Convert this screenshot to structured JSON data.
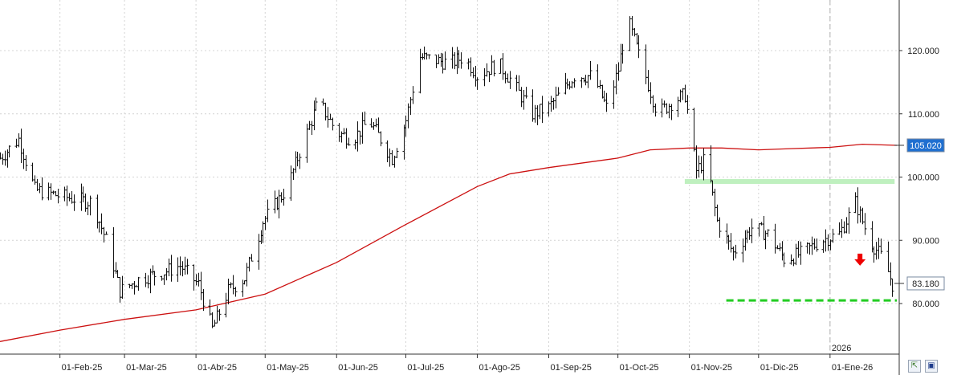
{
  "chart_data": {
    "type": "bar",
    "subtype": "ohlc",
    "title": "",
    "xlabel": "",
    "ylabel": "",
    "y_range": [
      72.0,
      128.0
    ],
    "y_ticks": [
      80,
      90,
      100,
      110,
      120
    ],
    "y_tick_labels": [
      "80.000",
      "90.000",
      "100.000",
      "110.000",
      "120.000"
    ],
    "x_range": [
      "2025-01-06",
      "2026-01-31"
    ],
    "x_ticks": [
      {
        "date": "2025-02-01",
        "label": "01-Feb-25"
      },
      {
        "date": "2025-03-01",
        "label": "01-Mar-25"
      },
      {
        "date": "2025-04-01",
        "label": "01-Abr-25"
      },
      {
        "date": "2025-05-01",
        "label": "01-May-25"
      },
      {
        "date": "2025-06-01",
        "label": "01-Jun-25"
      },
      {
        "date": "2025-07-01",
        "label": "01-Jul-25"
      },
      {
        "date": "2025-08-01",
        "label": "01-Ago-25"
      },
      {
        "date": "2025-09-01",
        "label": "01-Sep-25"
      },
      {
        "date": "2025-10-01",
        "label": "01-Oct-25"
      },
      {
        "date": "2025-11-01",
        "label": "01-Nov-25"
      },
      {
        "date": "2025-12-01",
        "label": "01-Dic-25"
      },
      {
        "date": "2026-01-01",
        "label": "01-Ene-26"
      }
    ],
    "year_marker": {
      "date": "2026-01-01",
      "label": "2026"
    },
    "grid": true,
    "price_anchors": [
      [
        "2025-01-06",
        103
      ],
      [
        "2025-01-14",
        106
      ],
      [
        "2025-01-21",
        98
      ],
      [
        "2025-02-01",
        97
      ],
      [
        "2025-02-15",
        96
      ],
      [
        "2025-02-21",
        90
      ],
      [
        "2025-02-27",
        82
      ],
      [
        "2025-03-08",
        84
      ],
      [
        "2025-03-18",
        85
      ],
      [
        "2025-03-25",
        86
      ],
      [
        "2025-04-02",
        83
      ],
      [
        "2025-04-08",
        76
      ],
      [
        "2025-04-15",
        82
      ],
      [
        "2025-04-22",
        84
      ],
      [
        "2025-04-30",
        93
      ],
      [
        "2025-05-10",
        98
      ],
      [
        "2025-05-18",
        106
      ],
      [
        "2025-05-24",
        112
      ],
      [
        "2025-06-01",
        107
      ],
      [
        "2025-06-08",
        106
      ],
      [
        "2025-06-15",
        109
      ],
      [
        "2025-06-25",
        103
      ],
      [
        "2025-07-01",
        109
      ],
      [
        "2025-07-07",
        119
      ],
      [
        "2025-07-20",
        118
      ],
      [
        "2025-07-26",
        119
      ],
      [
        "2025-08-01",
        116
      ],
      [
        "2025-08-10",
        118
      ],
      [
        "2025-08-16",
        115
      ],
      [
        "2025-08-25",
        110
      ],
      [
        "2025-09-01",
        111
      ],
      [
        "2025-09-12",
        116
      ],
      [
        "2025-09-20",
        116
      ],
      [
        "2025-09-26",
        111
      ],
      [
        "2025-10-01",
        117
      ],
      [
        "2025-10-05",
        125
      ],
      [
        "2025-10-12",
        117
      ],
      [
        "2025-10-18",
        110
      ],
      [
        "2025-10-25",
        112
      ],
      [
        "2025-10-30",
        113
      ],
      [
        "2025-11-01",
        108
      ],
      [
        "2025-11-04",
        101
      ],
      [
        "2025-11-08",
        103
      ],
      [
        "2025-11-13",
        93
      ],
      [
        "2025-11-20",
        88
      ],
      [
        "2025-11-28",
        92
      ],
      [
        "2025-12-05",
        91
      ],
      [
        "2025-12-12",
        87
      ],
      [
        "2025-12-20",
        88
      ],
      [
        "2025-12-28",
        90
      ],
      [
        "2026-01-05",
        91
      ],
      [
        "2026-01-12",
        96
      ],
      [
        "2026-01-18",
        90
      ],
      [
        "2026-01-24",
        87
      ],
      [
        "2026-01-28",
        83
      ]
    ],
    "moving_average": {
      "color": "#cc1111",
      "points": [
        [
          "2025-01-06",
          74.0
        ],
        [
          "2025-02-01",
          75.8
        ],
        [
          "2025-03-01",
          77.5
        ],
        [
          "2025-04-01",
          79.0
        ],
        [
          "2025-05-01",
          81.5
        ],
        [
          "2025-06-01",
          86.5
        ],
        [
          "2025-07-01",
          92.5
        ],
        [
          "2025-08-01",
          98.5
        ],
        [
          "2025-08-15",
          100.5
        ],
        [
          "2025-09-01",
          101.5
        ],
        [
          "2025-10-01",
          103.0
        ],
        [
          "2025-10-15",
          104.3
        ],
        [
          "2025-11-01",
          104.6
        ],
        [
          "2025-11-15",
          104.6
        ],
        [
          "2025-12-01",
          104.3
        ],
        [
          "2025-12-15",
          104.5
        ],
        [
          "2026-01-01",
          104.7
        ],
        [
          "2026-01-15",
          105.2
        ],
        [
          "2026-01-30",
          105.02
        ]
      ]
    },
    "annotations": {
      "resistance": {
        "from": "2025-10-30",
        "to": "2026-01-29",
        "y": 99.3,
        "color": "#bff0bf"
      },
      "support": {
        "from": "2025-11-17",
        "to": "2026-01-30",
        "y": 80.5,
        "color": "#22cc22"
      },
      "down_arrow": {
        "date": "2026-01-14",
        "y": 87.0,
        "color": "#ee0000"
      }
    },
    "last_price": {
      "value": 83.18,
      "label": "83.180",
      "box_color": "#ffffff"
    },
    "ma_last": {
      "value": 105.02,
      "label": "105.020",
      "box_color": "#1f6fd0"
    }
  },
  "toolbar": {
    "zoom_icon": "zoom-fit-icon",
    "zoom_glyph": "⇱",
    "save_icon": "floppy-disk-icon",
    "save_glyph": "▣"
  }
}
